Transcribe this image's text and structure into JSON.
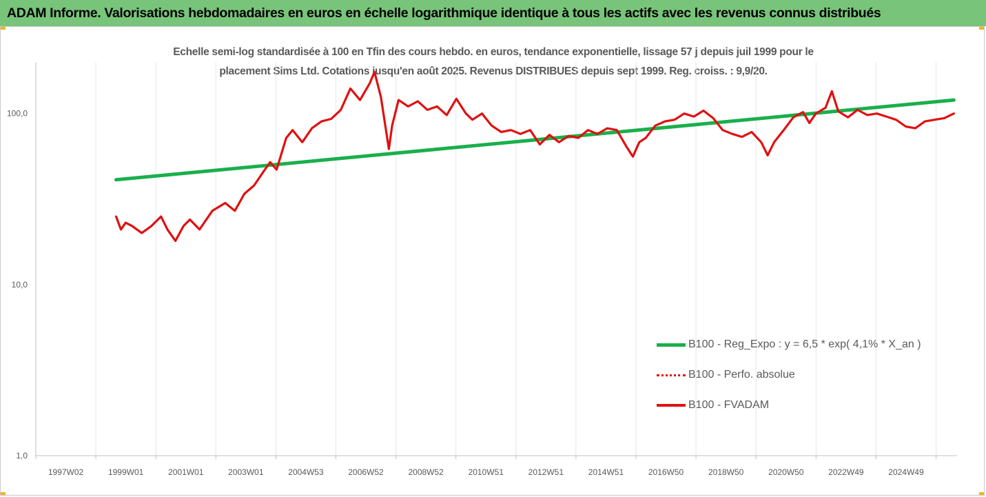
{
  "header": {
    "title": "ADAM Informe. Valorisations hebdomadaires en euros en échelle logarithmique identique à tous les actifs avec les revenus connus distribués",
    "background_color": "#78c47a"
  },
  "chart_data": {
    "type": "line",
    "title_line1": "Echelle semi-log standardisée à 100 en Tfin des cours hebdo. en euros, tendance exponentielle, lissage 57 j depuis juil 1999 pour le",
    "title_line2": "placement Sims Ltd. Cotations jusqu'en août 2025. Revenus DISTRIBUES depuis sept 1999. Reg. croiss. : 9,9/20.",
    "y_scale": "log",
    "ylim": [
      1,
      200
    ],
    "y_ticks": [
      "1,0",
      "10,0",
      "100,0"
    ],
    "x_ticks": [
      "1997W02",
      "1999W01",
      "2001W01",
      "2003W01",
      "2004W53",
      "2006W52",
      "2008W52",
      "2010W51",
      "2012W51",
      "2014W51",
      "2016W50",
      "2018W50",
      "2020W50",
      "2022W49",
      "2024W49"
    ],
    "xlim": [
      1997.0,
      2025.7
    ],
    "legend_position": "right-bottom",
    "grid": "vertical",
    "series": [
      {
        "name": "B100 - Reg_Expo : y = 6,5 * exp( 4,1% *  X_an )",
        "color": "#1aaf4c",
        "style": "solid",
        "x": [
          1999.5,
          2025.6
        ],
        "y": [
          41,
          120
        ]
      },
      {
        "name": "B100 - Perfo. absolue",
        "color": "#e01010",
        "style": "dotted",
        "x": [],
        "y": []
      },
      {
        "name": "B100 - FVADAM",
        "color": "#e01010",
        "style": "solid",
        "x": [
          1999.5,
          1999.65,
          1999.8,
          2000.0,
          2000.3,
          2000.6,
          2000.9,
          2001.1,
          2001.35,
          2001.6,
          2001.8,
          2002.1,
          2002.5,
          2002.9,
          2003.2,
          2003.5,
          2003.8,
          2004.1,
          2004.3,
          2004.5,
          2004.8,
          2005.0,
          2005.3,
          2005.6,
          2005.9,
          2006.2,
          2006.5,
          2006.8,
          2007.1,
          2007.4,
          2007.55,
          2007.75,
          2008.0,
          2008.1,
          2008.3,
          2008.6,
          2008.9,
          2009.2,
          2009.5,
          2009.8,
          2010.1,
          2010.4,
          2010.6,
          2010.9,
          2011.2,
          2011.5,
          2011.8,
          2012.1,
          2012.4,
          2012.7,
          2013.0,
          2013.3,
          2013.6,
          2013.9,
          2014.2,
          2014.5,
          2014.8,
          2015.1,
          2015.4,
          2015.6,
          2015.8,
          2016.0,
          2016.3,
          2016.6,
          2016.9,
          2017.2,
          2017.5,
          2017.8,
          2018.1,
          2018.4,
          2018.7,
          2019.0,
          2019.3,
          2019.6,
          2019.8,
          2020.0,
          2020.3,
          2020.6,
          2020.9,
          2021.1,
          2021.3,
          2021.6,
          2021.8,
          2022.0,
          2022.3,
          2022.6,
          2022.9,
          2023.2,
          2023.5,
          2023.8,
          2024.1,
          2024.4,
          2024.7,
          2025.0,
          2025.3,
          2025.6
        ],
        "y": [
          25,
          21,
          23,
          22,
          20,
          22,
          25,
          21,
          18,
          22,
          24,
          21,
          27,
          30,
          27,
          34,
          38,
          46,
          52,
          47,
          72,
          80,
          68,
          82,
          90,
          93,
          105,
          140,
          120,
          150,
          175,
          125,
          62,
          85,
          120,
          110,
          118,
          105,
          110,
          98,
          122,
          100,
          92,
          100,
          85,
          78,
          80,
          76,
          80,
          66,
          75,
          68,
          74,
          72,
          80,
          76,
          82,
          80,
          64,
          56,
          68,
          72,
          85,
          90,
          92,
          100,
          96,
          104,
          94,
          80,
          76,
          73,
          78,
          68,
          57,
          68,
          80,
          95,
          102,
          88,
          100,
          108,
          135,
          103,
          95,
          105,
          98,
          100,
          96,
          92,
          84,
          82,
          90,
          92,
          94,
          100
        ]
      }
    ]
  }
}
